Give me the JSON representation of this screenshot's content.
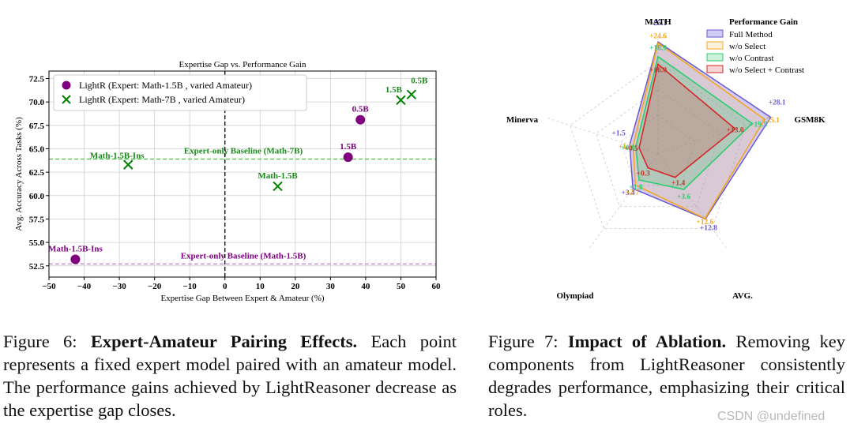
{
  "chart_data": [
    {
      "type": "scatter",
      "title": "Expertise Gap vs. Performance Gain",
      "xlabel": "Expertise Gap Between Expert & Amateur (%)",
      "ylabel": "Avg. Accuracy Across Tasks (%)",
      "xlim": [
        -50,
        60
      ],
      "ylim": [
        51.3,
        73.3
      ],
      "xticks": [
        -50,
        -40,
        -30,
        -20,
        -10,
        0,
        10,
        20,
        30,
        40,
        50,
        60
      ],
      "yticks": [
        52.5,
        55.0,
        57.5,
        60.0,
        62.5,
        65.0,
        67.5,
        70.0,
        72.5
      ],
      "grid": true,
      "legend_position": "top-left",
      "series": [
        {
          "name": "LightR (Expert: Math-1.5B , varied Amateur)",
          "marker": "circle",
          "color": "#800080",
          "points": [
            {
              "x": -42.5,
              "y": 53.2,
              "label": "Math-1.5B-Ins"
            },
            {
              "x": 35,
              "y": 64.1,
              "label": "1.5B"
            },
            {
              "x": 38.5,
              "y": 68.1,
              "label": "0.5B"
            }
          ]
        },
        {
          "name": "LightR (Expert: Math-7B , varied Amateur)",
          "marker": "x",
          "color": "#008000",
          "points": [
            {
              "x": -27.5,
              "y": 63.3,
              "label": "Math-1.5B-Ins"
            },
            {
              "x": 15,
              "y": 61.0,
              "label": "Math-1.5B"
            },
            {
              "x": 50,
              "y": 70.2,
              "label": "1.5B"
            },
            {
              "x": 53,
              "y": 70.8,
              "label": "0.5B"
            }
          ]
        }
      ],
      "reference_lines": [
        {
          "type": "horizontal",
          "y": 63.9,
          "label": "Expert-only Baseline (Math-7B)",
          "color": "#4cbb4c"
        },
        {
          "type": "horizontal",
          "y": 52.7,
          "label": "Expert-only Baseline (Math-1.5B)",
          "color": "#c080d8"
        },
        {
          "type": "vertical",
          "x": 0,
          "color": "#000000"
        }
      ]
    },
    {
      "type": "radar",
      "legend_title": "Performance Gain",
      "legend_position": "top-right",
      "axes": [
        "MATH",
        "GSM8K",
        "AVG.",
        "Olympiad",
        "Minerva"
      ],
      "r_max": 28.1,
      "series": [
        {
          "name": "Full Method",
          "color": "#6a5acd",
          "values": [
            25.1,
            28.1,
            12.8,
            3.4,
            1.5
          ],
          "labels": [
            "+25.1",
            "+28.1",
            "+12.8",
            "+3.4",
            "+1.5"
          ]
        },
        {
          "name": "w/o Select",
          "color": "#f5a623",
          "values": [
            24.6,
            25.1,
            12.6,
            2.7,
            1.1
          ],
          "labels": [
            "+24.6",
            "+25.1",
            "+12.6",
            "+2.7",
            "+1.1"
          ]
        },
        {
          "name": "w/o Contrast",
          "color": "#2ecc71",
          "values": [
            18.9,
            19.5,
            3.6,
            1.8,
            0.8
          ],
          "labels": [
            "+18.9",
            "+19.5",
            "+3.6",
            "+1.8",
            "+0.8"
          ]
        },
        {
          "name": "w/o Select + Contrast",
          "color": "#d62728",
          "values": [
            16.0,
            13.0,
            1.4,
            0.3,
            0.5
          ],
          "labels": [
            "+16.0",
            "+13.0",
            "+1.4",
            "+0.3",
            "+0.5"
          ]
        }
      ]
    }
  ],
  "captions": {
    "fig6": {
      "label": "Figure 6:",
      "title": "Expert-Amateur Pairing Effects.",
      "text": "Each point represents a fixed expert model paired with an amateur model. The performance gains achieved by LightReasoner decrease as the expertise gap closes."
    },
    "fig7": {
      "label": "Figure 7:",
      "title": "Impact of Ablation.",
      "text": "Removing key components from LightReasoner consistently degrades performance, emphasizing their critical roles."
    }
  },
  "watermark": "CSDN @undefined"
}
